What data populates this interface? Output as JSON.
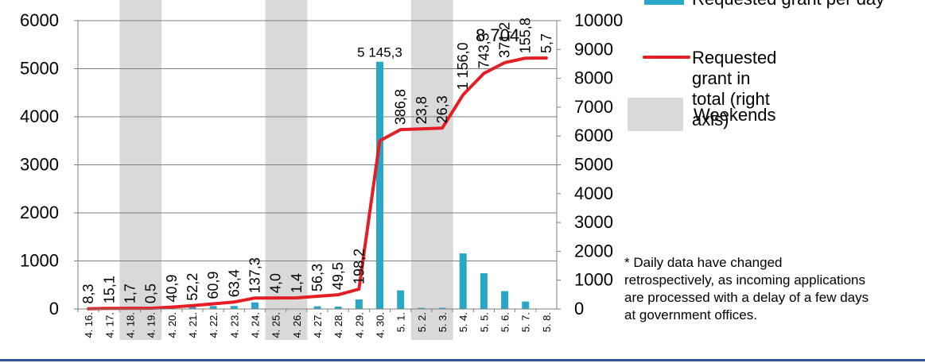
{
  "chart_data": {
    "type": "bar",
    "categories": [
      "4. 16.",
      "4. 17.",
      "4. 18.",
      "4. 19.",
      "4. 20.",
      "4. 21.",
      "4. 22.",
      "4. 23.",
      "4. 24.",
      "4. 25.",
      "4. 26.",
      "4. 27.",
      "4. 28.",
      "4. 29.",
      "4. 30.",
      "5. 1.",
      "5. 2.",
      "5. 3.",
      "5. 4.",
      "5. 5.",
      "5. 6.",
      "5. 7.",
      "5. 8."
    ],
    "series": [
      {
        "name": "Requested grant per day",
        "type": "bar",
        "axis": "left",
        "color": "#2aa7c6",
        "values": [
          8.3,
          15.1,
          1.7,
          0.5,
          40.9,
          52.2,
          60.9,
          63.4,
          137.3,
          4.0,
          1.4,
          56.3,
          49.5,
          198.2,
          5145.3,
          386.8,
          23.8,
          26.3,
          1156.0,
          743.3,
          371.2,
          155.8,
          5.7
        ],
        "labels": [
          "8,3",
          "15,1",
          "1,7",
          "0,5",
          "40,9",
          "52,2",
          "60,9",
          "63,4",
          "137,3",
          "4,0",
          "1,4",
          "56,3",
          "49,5",
          "198,2",
          "5 145,3",
          "386,8",
          "23,8",
          "26,3",
          "1 156,0",
          "743,3",
          "371,2",
          "155,8",
          "5,7"
        ]
      },
      {
        "name": "Requested grant in total",
        "legend_label": "Requested grant in total (right axis)",
        "type": "line",
        "axis": "right",
        "color": "#e31e24",
        "values": [
          8,
          23,
          25,
          26,
          67,
          119,
          180,
          243,
          380,
          384,
          386,
          442,
          492,
          690,
          5835,
          6222,
          6246,
          6272,
          7428,
          8171,
          8543,
          8699,
          8704
        ],
        "end_label": "8 704"
      }
    ],
    "weekends": [
      "4. 18.",
      "4. 19.",
      "4. 25.",
      "4. 26.",
      "5. 2.",
      "5. 3."
    ],
    "weekend_legend": "Weekends",
    "weekend_color": "#d9d9d9",
    "y_left": {
      "ticks": [
        "0",
        "1000",
        "2000",
        "3000",
        "4000",
        "5000",
        "6000"
      ],
      "ylim": [
        0,
        6000
      ]
    },
    "y_right": {
      "ticks": [
        "0",
        "1000",
        "2000",
        "3000",
        "4000",
        "5000",
        "6000",
        "7000",
        "8000",
        "9000",
        "10000"
      ],
      "ylim": [
        0,
        10000
      ]
    },
    "grid": true,
    "legend_position": "right",
    "footnote": [
      "* Daily data have changed",
      "retrospectively, as incoming applications",
      "are processed with a delay of a few days",
      "at government offices."
    ]
  }
}
